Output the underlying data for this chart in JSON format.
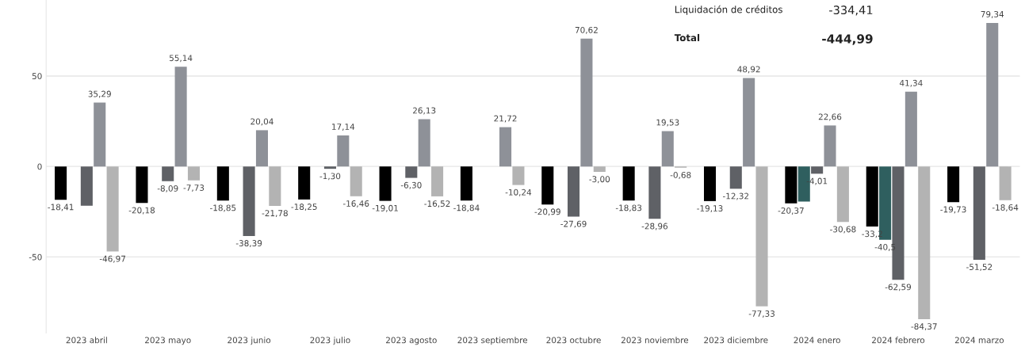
{
  "chart_data": {
    "type": "bar",
    "categories": [
      "2023 abril",
      "2023 mayo",
      "2023 junio",
      "2023 julio",
      "2023 agosto",
      "2023 septiembre",
      "2023 octubre",
      "2023 noviembre",
      "2023 diciembre",
      "2024 enero",
      "2024 febrero",
      "2024 marzo"
    ],
    "series": [
      {
        "color": "#000000",
        "values": [
          -18.41,
          -20.18,
          -18.85,
          -18.25,
          -19.01,
          -18.84,
          -20.99,
          -18.83,
          -19.13,
          -20.37,
          -33.2,
          -19.73
        ],
        "value_labels": [
          "-18,41",
          "-20,18",
          "-18,85",
          "-18,25",
          "-19,01",
          "-18,84",
          "-20,99",
          "-18,83",
          "-19,13",
          "-20,37",
          "-33,2",
          "-19,73"
        ]
      },
      {
        "color": "#2f5f5f",
        "values": [
          null,
          null,
          null,
          null,
          null,
          null,
          null,
          null,
          null,
          -19.4,
          -40.5,
          null
        ],
        "value_labels": [
          null,
          null,
          null,
          null,
          null,
          null,
          null,
          null,
          null,
          null,
          "-40,5",
          null
        ]
      },
      {
        "color": "#5f6166",
        "values": [
          -21.7,
          -8.09,
          -38.39,
          -1.3,
          -6.3,
          null,
          -27.69,
          -28.96,
          -12.32,
          -4.01,
          -62.59,
          -51.52
        ],
        "value_labels": [
          null,
          "-8,09",
          "-38,39",
          "-1,30",
          "-6,30",
          null,
          "-27,69",
          "-28,96",
          "-12,32",
          "-4,01",
          "-62,59",
          "-51,52"
        ]
      },
      {
        "color": "#8e9198",
        "values": [
          35.29,
          55.14,
          20.04,
          17.14,
          26.13,
          21.72,
          70.62,
          19.53,
          48.92,
          22.66,
          41.34,
          79.34
        ],
        "value_labels": [
          "35,29",
          "55,14",
          "20,04",
          "17,14",
          "26,13",
          "21,72",
          "70,62",
          "19,53",
          "48,92",
          "22,66",
          "41,34",
          "79,34"
        ]
      },
      {
        "color": "#b3b3b3",
        "values": [
          -46.97,
          -7.73,
          -21.78,
          -16.46,
          -16.52,
          -10.24,
          -3.0,
          -0.68,
          -77.33,
          -30.68,
          -84.37,
          -18.64
        ],
        "value_labels": [
          "-46,97",
          "-7,73",
          "-21,78",
          "-16,46",
          "-16,52",
          "-10,24",
          "-3,00",
          "-0,68",
          "-77,33",
          "-30,68",
          "-84,37",
          "-18,64"
        ]
      }
    ],
    "ylim": [
      -92,
      92
    ],
    "yticks": [
      -50,
      0,
      50
    ],
    "grid": "y",
    "legend": false,
    "annotations": [
      "Liquidación de créditos",
      "-334,41",
      "Total",
      "-444,99"
    ]
  }
}
